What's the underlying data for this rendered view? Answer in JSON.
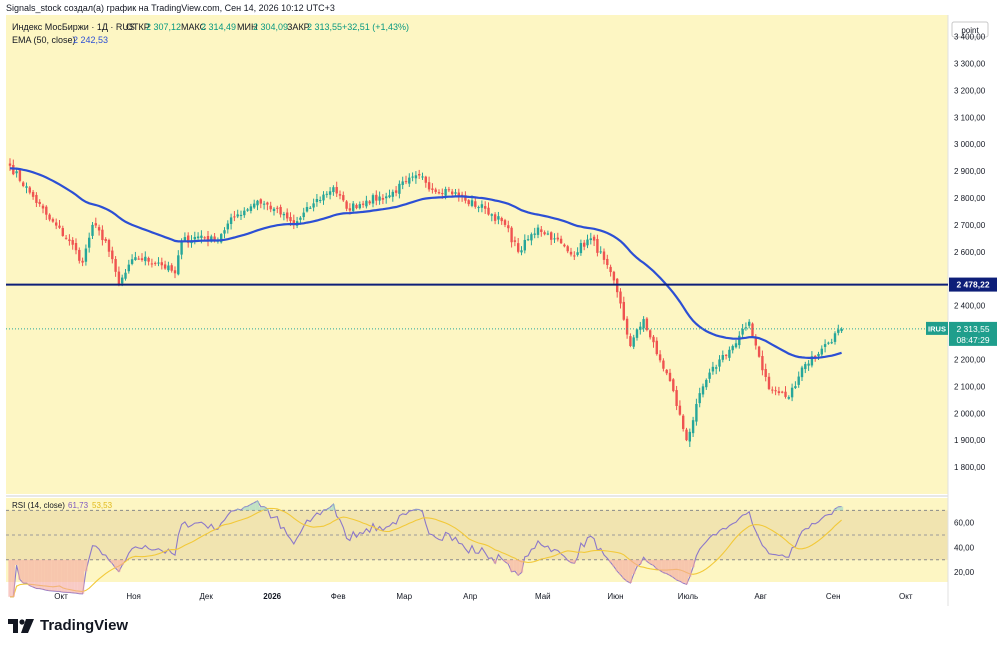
{
  "header": {
    "attribution": "Signals_stock создал(а) график на TradingView.com, Сен 14, 2026 10:12 UTC+3"
  },
  "legend": {
    "symbol": "Индекс МосБиржи · 1Д · RUS",
    "open_label": "ОТКР",
    "open_value": "2 307,12",
    "high_label": "МАКС",
    "high_value": "2 314,49",
    "low_label": "МИН",
    "low_value": "2 304,09",
    "close_label": "ЗАКР",
    "close_value": "2 313,55",
    "change_value": "+32,51 (+1,43%)",
    "ema_label": "EMA (50, close)",
    "ema_value": "2 242,53",
    "rsi_label": "RSI (14, close)",
    "rsi_value": "61,73",
    "rsi_ma_value": "53,53"
  },
  "price_axis": {
    "unit_button": "point",
    "ticks": [
      "3 400,00",
      "3 300,00",
      "3 200,00",
      "3 100,00",
      "3 000,00",
      "2 900,00",
      "2 800,00",
      "2 700,00",
      "2 600,00",
      "2 500,00",
      "2 400,00",
      "2 300,00",
      "2 200,00",
      "2 100,00",
      "2 000,00",
      "1 900,00",
      "1 800,00"
    ],
    "ticks_numeric": [
      3400,
      3300,
      3200,
      3100,
      3000,
      2900,
      2800,
      2700,
      2600,
      2500,
      2400,
      2300,
      2200,
      2100,
      2000,
      1900,
      1800
    ],
    "level_label": "2 478,22",
    "last_symbol": "IRUS",
    "last_price": "2 313,55",
    "countdown": "08:47:29"
  },
  "rsi_axis": {
    "ticks": [
      "60,00",
      "40,00",
      "20,00"
    ],
    "ticks_numeric": [
      60,
      40,
      20
    ]
  },
  "time_axis": {
    "labels": [
      "Окт",
      "Ноя",
      "Дек",
      "2026",
      "Фев",
      "Мар",
      "Апр",
      "Май",
      "Июн",
      "Июль",
      "Авг",
      "Сен",
      "Окт"
    ],
    "bold_index": 3
  },
  "chart_data": {
    "type": "candlestick",
    "symbol": "IRUS",
    "horizontal_level": 2478.22,
    "last_close": 2313.55,
    "y_range": [
      1700,
      3480
    ],
    "rsi_range": [
      12,
      80
    ],
    "rsi_band": [
      30,
      70
    ],
    "colors": {
      "up": "#26a69a",
      "down": "#ef5350",
      "background": "#fdf6c3",
      "ema": "#2c4fd4",
      "level": "#0d1e78",
      "rsi": "#8c78c9",
      "rsi_ma": "#f2c93a",
      "last_price_tag": "#1f9e8c"
    },
    "anchors_close": [
      [
        0,
        2920
      ],
      [
        6,
        2820
      ],
      [
        12,
        2720
      ],
      [
        18,
        2640
      ],
      [
        22,
        2560
      ],
      [
        25,
        2700
      ],
      [
        29,
        2640
      ],
      [
        33,
        2480
      ],
      [
        38,
        2580
      ],
      [
        45,
        2560
      ],
      [
        50,
        2520
      ],
      [
        52,
        2640
      ],
      [
        58,
        2660
      ],
      [
        62,
        2640
      ],
      [
        68,
        2730
      ],
      [
        75,
        2790
      ],
      [
        80,
        2760
      ],
      [
        86,
        2700
      ],
      [
        92,
        2780
      ],
      [
        98,
        2840
      ],
      [
        102,
        2760
      ],
      [
        108,
        2790
      ],
      [
        115,
        2810
      ],
      [
        120,
        2860
      ],
      [
        125,
        2880
      ],
      [
        128,
        2830
      ],
      [
        133,
        2830
      ],
      [
        138,
        2790
      ],
      [
        144,
        2760
      ],
      [
        150,
        2700
      ],
      [
        154,
        2600
      ],
      [
        160,
        2690
      ],
      [
        165,
        2650
      ],
      [
        170,
        2590
      ],
      [
        176,
        2650
      ],
      [
        180,
        2570
      ],
      [
        184,
        2450
      ],
      [
        188,
        2250
      ],
      [
        192,
        2350
      ],
      [
        196,
        2220
      ],
      [
        200,
        2120
      ],
      [
        205,
        1900
      ],
      [
        210,
        2100
      ],
      [
        215,
        2200
      ],
      [
        220,
        2260
      ],
      [
        224,
        2340
      ],
      [
        227,
        2210
      ],
      [
        230,
        2090
      ],
      [
        236,
        2060
      ],
      [
        240,
        2170
      ],
      [
        246,
        2240
      ],
      [
        252,
        2313.55
      ]
    ],
    "ema_period": 50,
    "ema_seed": 2910,
    "rsi_period": 14,
    "rsi_ma_period": 14,
    "month_bar_index": [
      10,
      32,
      54,
      74,
      94,
      114,
      134,
      156,
      178,
      200,
      222,
      244,
      266
    ]
  }
}
